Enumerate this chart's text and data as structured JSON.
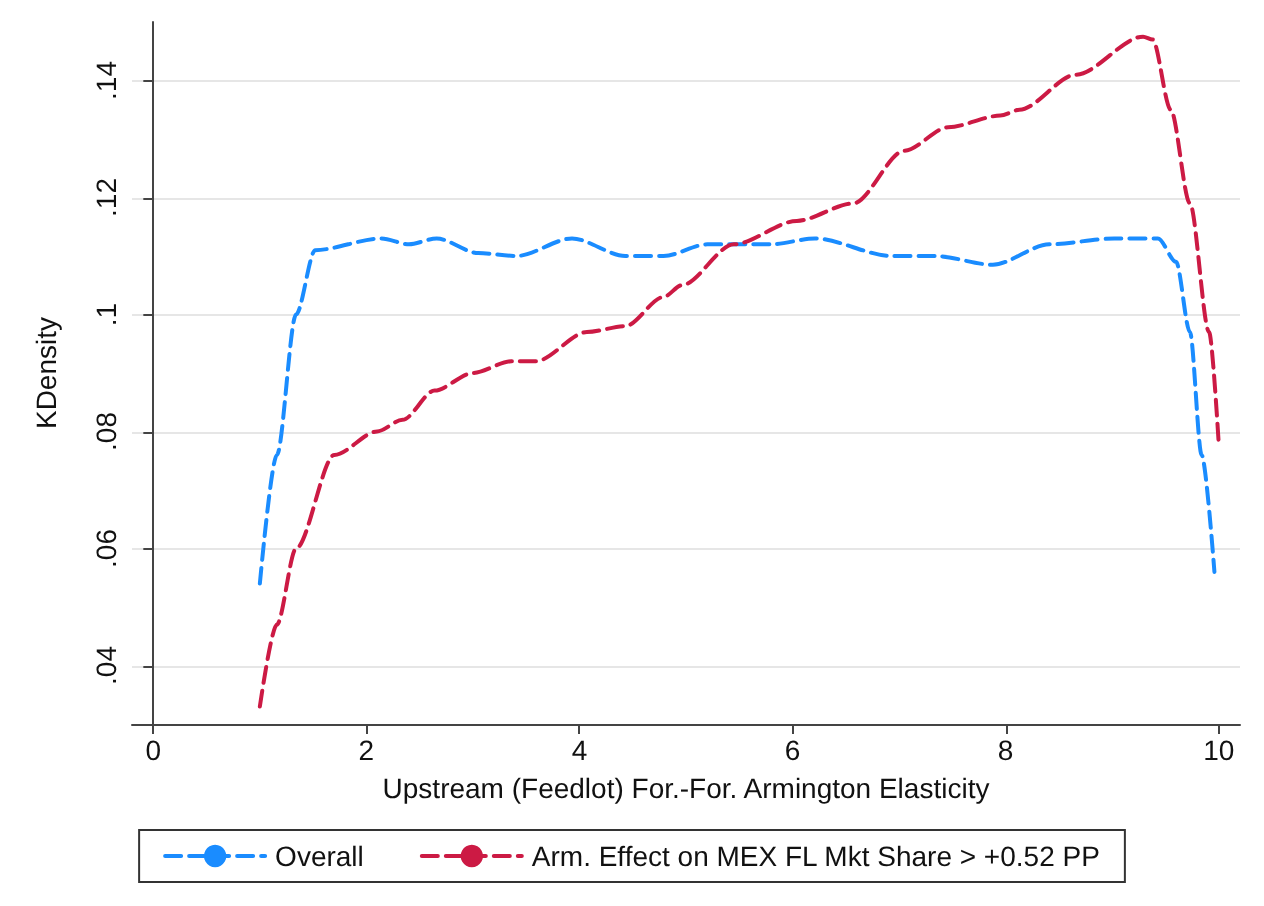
{
  "chart_data": {
    "type": "line",
    "xlabel": "Upstream (Feedlot) For.-For. Armington Elasticity",
    "ylabel": "KDensity",
    "xlim": [
      -0.2,
      10.2
    ],
    "xticks": [
      0,
      2,
      4,
      6,
      8,
      10
    ],
    "ylim": [
      0.03,
      0.15
    ],
    "yticks": [
      {
        "value": 0.04,
        "label": ".04"
      },
      {
        "value": 0.06,
        "label": ".06"
      },
      {
        "value": 0.08,
        "label": ".08"
      },
      {
        "value": 0.1,
        "label": ".1"
      },
      {
        "value": 0.12,
        "label": ".12"
      },
      {
        "value": 0.14,
        "label": ".14"
      }
    ],
    "grid": "y",
    "legend": "bottom",
    "line_style": "dashed",
    "marker": "none",
    "series": [
      {
        "name": "Overall",
        "color": "#1a8cff",
        "x": [
          1.0,
          1.16,
          1.34,
          1.52,
          2.14,
          2.4,
          2.66,
          3.05,
          3.41,
          3.93,
          4.43,
          4.79,
          5.2,
          5.8,
          6.21,
          6.93,
          7.34,
          7.88,
          8.41,
          9.02,
          9.43,
          9.6,
          9.73,
          9.84,
          9.96
        ],
        "values": [
          0.054,
          0.076,
          0.1,
          0.111,
          0.113,
          0.112,
          0.113,
          0.1105,
          0.11,
          0.113,
          0.11,
          0.11,
          0.112,
          0.112,
          0.113,
          0.11,
          0.11,
          0.1085,
          0.112,
          0.113,
          0.113,
          0.109,
          0.097,
          0.076,
          0.056
        ]
      },
      {
        "name": "Arm. Effect on MEX FL Mkt Share > +0.52 PP",
        "color": "#cc1a44",
        "x": [
          1.0,
          1.16,
          1.34,
          1.7,
          2.1,
          2.34,
          2.64,
          3.0,
          3.36,
          3.59,
          4.07,
          4.43,
          4.79,
          4.96,
          5.45,
          6.04,
          6.57,
          7.05,
          7.46,
          7.95,
          8.13,
          8.66,
          9.29,
          9.38,
          9.55,
          9.73,
          9.91,
          10.0
        ],
        "values": [
          0.033,
          0.047,
          0.06,
          0.076,
          0.08,
          0.082,
          0.087,
          0.09,
          0.092,
          0.092,
          0.097,
          0.098,
          0.103,
          0.105,
          0.112,
          0.116,
          0.119,
          0.128,
          0.132,
          0.134,
          0.135,
          0.141,
          0.1475,
          0.147,
          0.135,
          0.119,
          0.097,
          0.078
        ]
      }
    ]
  }
}
